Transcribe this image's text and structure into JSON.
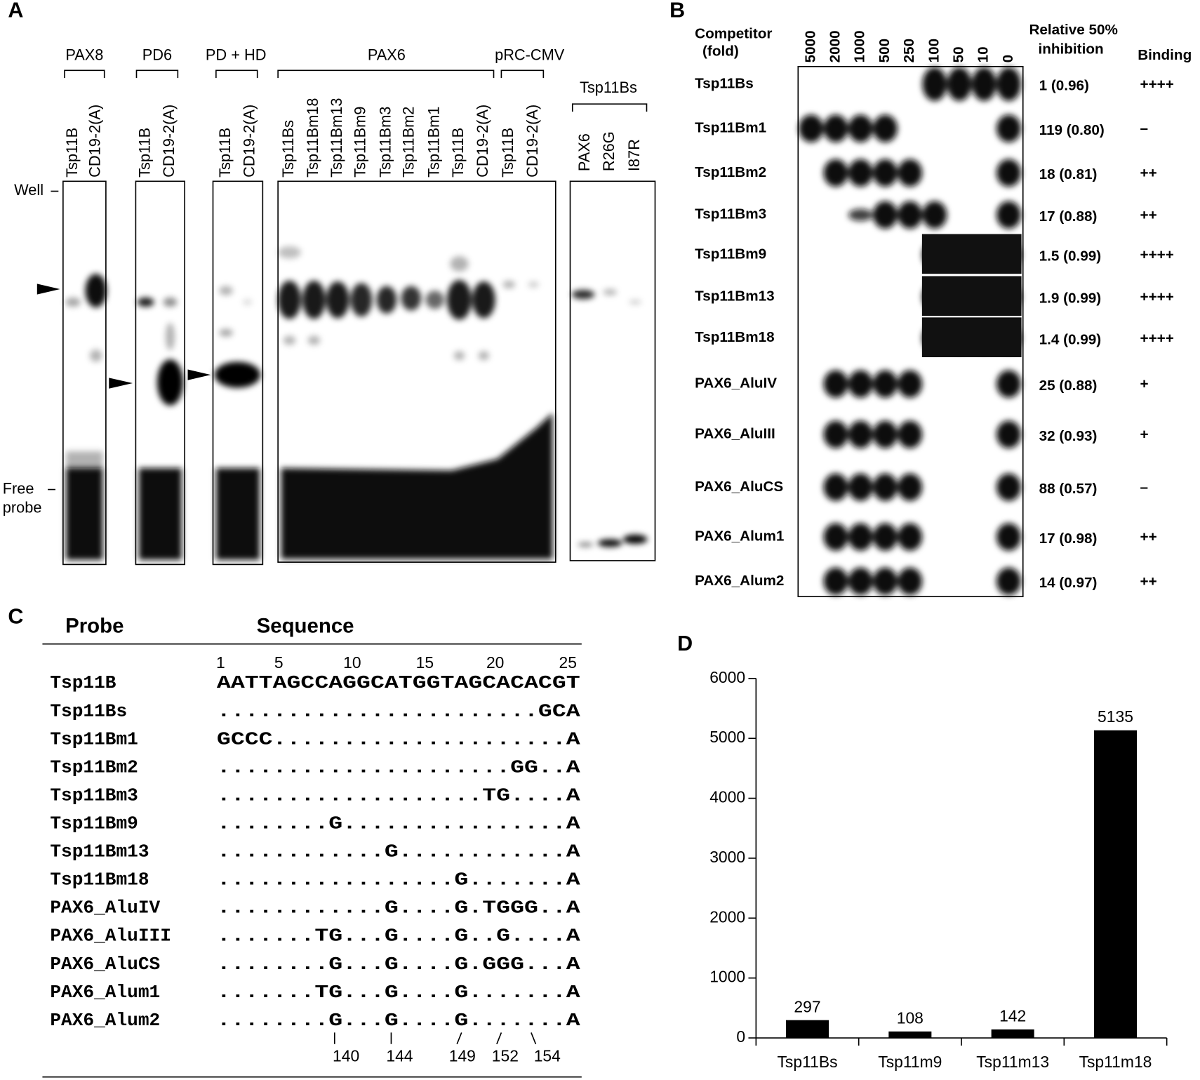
{
  "panel_a": {
    "label": "A",
    "lane_groups": [
      {
        "name": "PAX8",
        "lanes": [
          "Tsp11B",
          "CD19-2(A)"
        ]
      },
      {
        "name": "PD6",
        "lanes": [
          "Tsp11B",
          "CD19-2(A)"
        ]
      },
      {
        "name": "PD + HD",
        "lanes": [
          "Tsp11B",
          "CD19-2(A)"
        ]
      },
      {
        "name": "PAX6",
        "lanes": [
          "Tsp11Bs",
          "Tsp11Bm18",
          "Tsp11Bm13",
          "Tsp11Bm9",
          "Tsp11Bm3",
          "Tsp11Bm2",
          "Tsp11Bm1",
          "Tsp11B",
          "CD19-2(A)"
        ]
      },
      {
        "name": "pRC-CMV",
        "lanes": [
          "Tsp11B",
          "CD19-2(A)"
        ]
      },
      {
        "name": "Tsp11Bs",
        "lanes": [
          "PAX6",
          "R26G",
          "I87R"
        ]
      }
    ],
    "well_label": "Well",
    "free_probe_label": [
      "Free",
      "probe"
    ]
  },
  "panel_b": {
    "label": "B",
    "competitor_header": [
      "Competitor",
      "(fold)"
    ],
    "folds": [
      5000,
      2000,
      1000,
      500,
      250,
      100,
      50,
      10,
      0
    ],
    "inhibition_header": [
      "Relative 50%",
      "inhibition"
    ],
    "binding_header": "Binding",
    "rows": [
      {
        "probe": "Tsp11Bs",
        "inhibition": "1 (0.96)",
        "binding": "++++"
      },
      {
        "probe": "Tsp11Bm1",
        "inhibition": "119 (0.80)",
        "binding": "–"
      },
      {
        "probe": "Tsp11Bm2",
        "inhibition": "18 (0.81)",
        "binding": "++"
      },
      {
        "probe": "Tsp11Bm3",
        "inhibition": "17 (0.88)",
        "binding": "++"
      },
      {
        "probe": "Tsp11Bm9",
        "inhibition": "1.5 (0.99)",
        "binding": "++++"
      },
      {
        "probe": "Tsp11Bm13",
        "inhibition": "1.9 (0.99)",
        "binding": "++++"
      },
      {
        "probe": "Tsp11Bm18",
        "inhibition": "1.4 (0.99)",
        "binding": "++++"
      },
      {
        "probe": "PAX6_AluIV",
        "inhibition": "25 (0.88)",
        "binding": "+"
      },
      {
        "probe": "PAX6_AluIII",
        "inhibition": "32 (0.93)",
        "binding": "+"
      },
      {
        "probe": "PAX6_AluCS",
        "inhibition": "88 (0.57)",
        "binding": "–"
      },
      {
        "probe": "PAX6_Alum1",
        "inhibition": "17 (0.98)",
        "binding": "++"
      },
      {
        "probe": "PAX6_Alum2",
        "inhibition": "14 (0.97)",
        "binding": "++"
      }
    ]
  },
  "panel_c": {
    "label": "C",
    "headers": [
      "Probe",
      "Sequence"
    ],
    "positions": [
      1,
      5,
      10,
      15,
      20,
      25
    ],
    "rows": [
      {
        "probe": "Tsp11B",
        "sequence": "AATTAGCCAGGCATGGTAGCACACGT"
      },
      {
        "probe": "Tsp11Bs",
        "sequence": ".......................GCA"
      },
      {
        "probe": "Tsp11Bm1",
        "sequence": "GCCC.....................A"
      },
      {
        "probe": "Tsp11Bm2",
        "sequence": ".....................GG..A"
      },
      {
        "probe": "Tsp11Bm3",
        "sequence": "...................TG....A"
      },
      {
        "probe": "Tsp11Bm9",
        "sequence": "........G................A"
      },
      {
        "probe": "Tsp11Bm13",
        "sequence": "............G............A"
      },
      {
        "probe": "Tsp11Bm18",
        "sequence": ".................G.......A"
      },
      {
        "probe": "PAX6_AluIV",
        "sequence": "............G....G.TGGG..A"
      },
      {
        "probe": "PAX6_AluIII",
        "sequence": ".......TG...G....G..G....A"
      },
      {
        "probe": "PAX6_AluCS",
        "sequence": "........G...G....G.GGG...A"
      },
      {
        "probe": "PAX6_Alum1",
        "sequence": ".......TG...G....G.......A"
      },
      {
        "probe": "PAX6_Alum2",
        "sequence": "........G...G....G.......A"
      }
    ],
    "bottom_positions": [
      140,
      144,
      149,
      152,
      154
    ]
  },
  "chart_data": {
    "type": "bar",
    "panel_label": "D",
    "categories": [
      "Tsp11Bs",
      "Tsp11m9",
      "Tsp11m13",
      "Tsp11m18"
    ],
    "values": [
      297,
      108,
      142,
      5135
    ],
    "color": "#000000",
    "ylim": [
      0,
      6000
    ],
    "yticks": [
      0,
      1000,
      2000,
      3000,
      4000,
      5000,
      6000
    ]
  }
}
